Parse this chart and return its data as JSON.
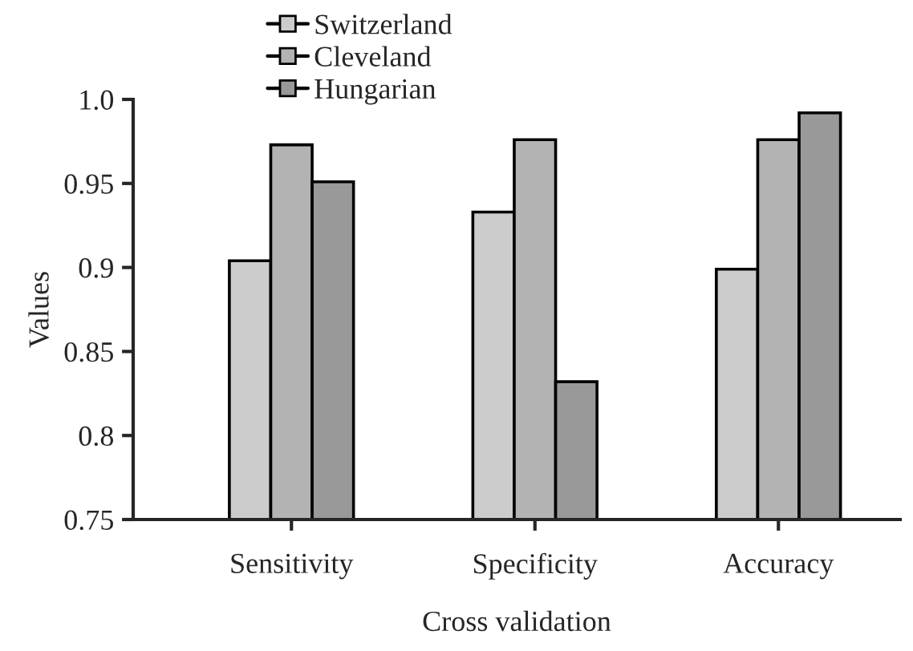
{
  "chart_data": {
    "type": "bar",
    "xlabel": "Cross validation",
    "ylabel": "Values",
    "categories": [
      "Sensitivity",
      "Specificity",
      "Accuracy"
    ],
    "series": [
      {
        "name": "Switzerland",
        "color": "#cccccc",
        "values": [
          0.904,
          0.933,
          0.899
        ]
      },
      {
        "name": "Cleveland",
        "color": "#b3b3b3",
        "values": [
          0.973,
          0.976,
          0.976
        ]
      },
      {
        "name": "Hungarian",
        "color": "#999999",
        "values": [
          0.951,
          0.832,
          0.992
        ]
      }
    ],
    "ylim": [
      0.75,
      1.0
    ],
    "yticks": [
      {
        "value": 0.75,
        "label": "0.75"
      },
      {
        "value": 0.8,
        "label": "0.8"
      },
      {
        "value": 0.85,
        "label": "0.85"
      },
      {
        "value": 0.9,
        "label": "0.9"
      },
      {
        "value": 0.95,
        "label": "0.95"
      },
      {
        "value": 1.0,
        "label": "1.0"
      }
    ],
    "grid": false,
    "legend": "top left"
  }
}
